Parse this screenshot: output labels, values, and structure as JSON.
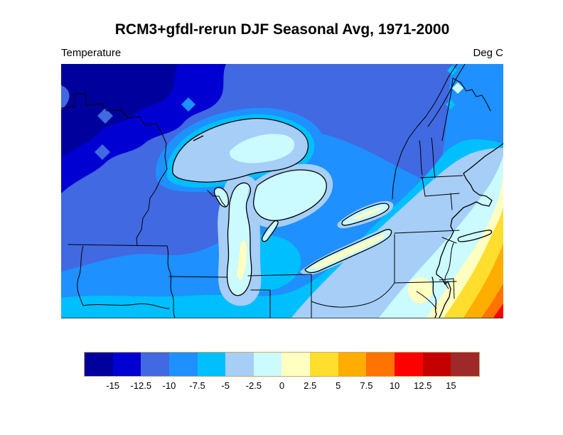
{
  "figure": {
    "title": "RCM3+gfdl-rerun DJF Seasonal Avg, 1971-2000",
    "variable": "Temperature",
    "units": "Deg C"
  },
  "colorbar": {
    "tick_labels": [
      "-15",
      "-12.5",
      "-10",
      "-7.5",
      "-5",
      "-2.5",
      "0",
      "2.5",
      "5",
      "7.5",
      "10",
      "12.5",
      "15"
    ],
    "colors": [
      "#00009C",
      "#0000D2",
      "#4169E1",
      "#1E90FF",
      "#00BFFF",
      "#A6CEF7",
      "#CBFAFF",
      "#FFFFC2",
      "#FFDE2E",
      "#FFAD00",
      "#FF7300",
      "#FF0000",
      "#C40000",
      "#9F2929"
    ],
    "border_color": "#C9A96A"
  },
  "chart_data": {
    "type": "filled-contour-map",
    "title": "RCM3+gfdl-rerun DJF Seasonal Avg, 1971-2000",
    "variable": "Temperature",
    "units": "Deg C",
    "contour_levels": [
      -15,
      -12.5,
      -10,
      -7.5,
      -5,
      -2.5,
      0,
      2.5,
      5,
      7.5,
      10,
      12.5,
      15
    ],
    "legend_position": "bottom"
  }
}
